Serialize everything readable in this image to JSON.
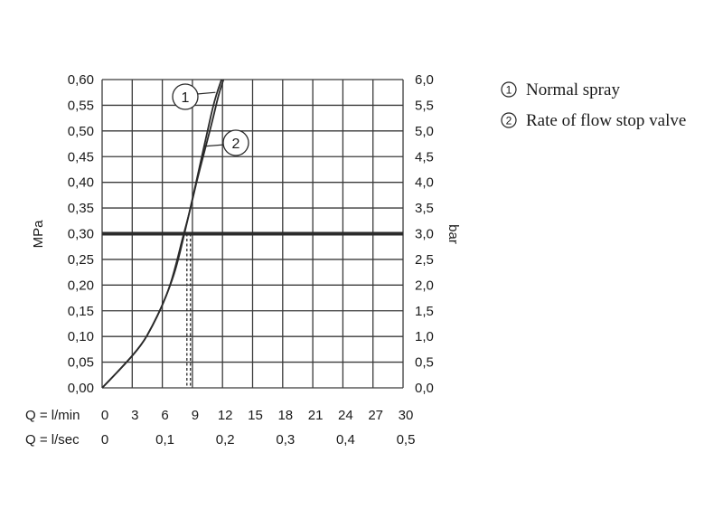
{
  "chart_data": {
    "type": "line",
    "title": "",
    "y_left": {
      "label": "MPa",
      "ticks": [
        "0,00",
        "0,05",
        "0,10",
        "0,15",
        "0,20",
        "0,25",
        "0,30",
        "0,35",
        "0,40",
        "0,45",
        "0,50",
        "0,55",
        "0,60"
      ],
      "range": [
        0,
        0.6
      ]
    },
    "y_right": {
      "label": "bar",
      "ticks": [
        "0,0",
        "0,5",
        "1,0",
        "1,5",
        "2,0",
        "2,5",
        "3,0",
        "3,5",
        "4,0",
        "4,5",
        "5,0",
        "5,5",
        "6,0"
      ],
      "range": [
        0,
        6
      ]
    },
    "x_lmin": {
      "label": "Q = l/min",
      "ticks": [
        "0",
        "3",
        "6",
        "9",
        "12",
        "15",
        "18",
        "21",
        "24",
        "27",
        "30"
      ],
      "range": [
        0,
        30
      ]
    },
    "x_lsec": {
      "label": "Q = l/sec",
      "ticks": [
        "0",
        "0,1",
        "0,2",
        "0,3",
        "0,4",
        "0,5"
      ],
      "values": [
        0,
        0.1,
        0.2,
        0.3,
        0.4,
        0.5
      ]
    },
    "grid": true,
    "reference_line": {
      "y": 0.3,
      "style": "thick"
    },
    "series": [
      {
        "name": "Normal spray",
        "marker": "1",
        "x": [
          0,
          2,
          4,
          5,
          6,
          6.8,
          7.5,
          8,
          8.7,
          9.4,
          10.2,
          11,
          11.6,
          12.1
        ],
        "y": [
          0,
          0.04,
          0.085,
          0.12,
          0.16,
          0.2,
          0.25,
          0.29,
          0.34,
          0.4,
          0.46,
          0.52,
          0.57,
          0.6
        ],
        "drop_x": 8.45
      },
      {
        "name": "Rate of flow stop valve",
        "marker": "2",
        "x": [
          0,
          2,
          4,
          5,
          6,
          7,
          7.6,
          8.2,
          8.8,
          9.6,
          10.5,
          11.2,
          11.9
        ],
        "y": [
          0,
          0.04,
          0.085,
          0.12,
          0.16,
          0.21,
          0.25,
          0.3,
          0.35,
          0.42,
          0.5,
          0.56,
          0.6
        ],
        "drop_x": 8.8
      }
    ],
    "legend": {
      "placement": "right",
      "items": [
        {
          "marker": "1",
          "label": "Normal spray"
        },
        {
          "marker": "2",
          "label": "Rate of flow stop valve"
        }
      ]
    }
  }
}
